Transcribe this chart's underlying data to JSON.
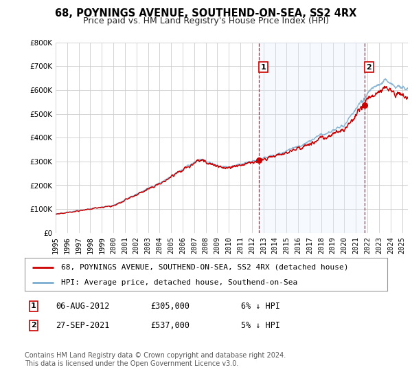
{
  "title": "68, POYNINGS AVENUE, SOUTHEND-ON-SEA, SS2 4RX",
  "subtitle": "Price paid vs. HM Land Registry's House Price Index (HPI)",
  "ylim": [
    0,
    800000
  ],
  "yticks": [
    0,
    100000,
    200000,
    300000,
    400000,
    500000,
    600000,
    700000,
    800000
  ],
  "xlim_start": 1995.0,
  "xlim_end": 2025.5,
  "transaction1": {
    "date_num": 2012.59,
    "price": 305000,
    "label": "1",
    "date_str": "06-AUG-2012",
    "amount": "£305,000",
    "pct": "6% ↓ HPI"
  },
  "transaction2": {
    "date_num": 2021.74,
    "price": 537000,
    "label": "2",
    "date_str": "27-SEP-2021",
    "amount": "£537,000",
    "pct": "5% ↓ HPI"
  },
  "legend_line1": "68, POYNINGS AVENUE, SOUTHEND-ON-SEA, SS2 4RX (detached house)",
  "legend_line2": "HPI: Average price, detached house, Southend-on-Sea",
  "footer": "Contains HM Land Registry data © Crown copyright and database right 2024.\nThis data is licensed under the Open Government Licence v3.0.",
  "red_color": "#cc0000",
  "blue_color": "#7aadcf",
  "fill_color": "#ddeeff",
  "grid_color": "#cccccc",
  "background_color": "#ffffff",
  "title_fontsize": 10.5,
  "subtitle_fontsize": 9,
  "tick_label_fontsize": 7.5,
  "legend_fontsize": 8,
  "footer_fontsize": 7
}
